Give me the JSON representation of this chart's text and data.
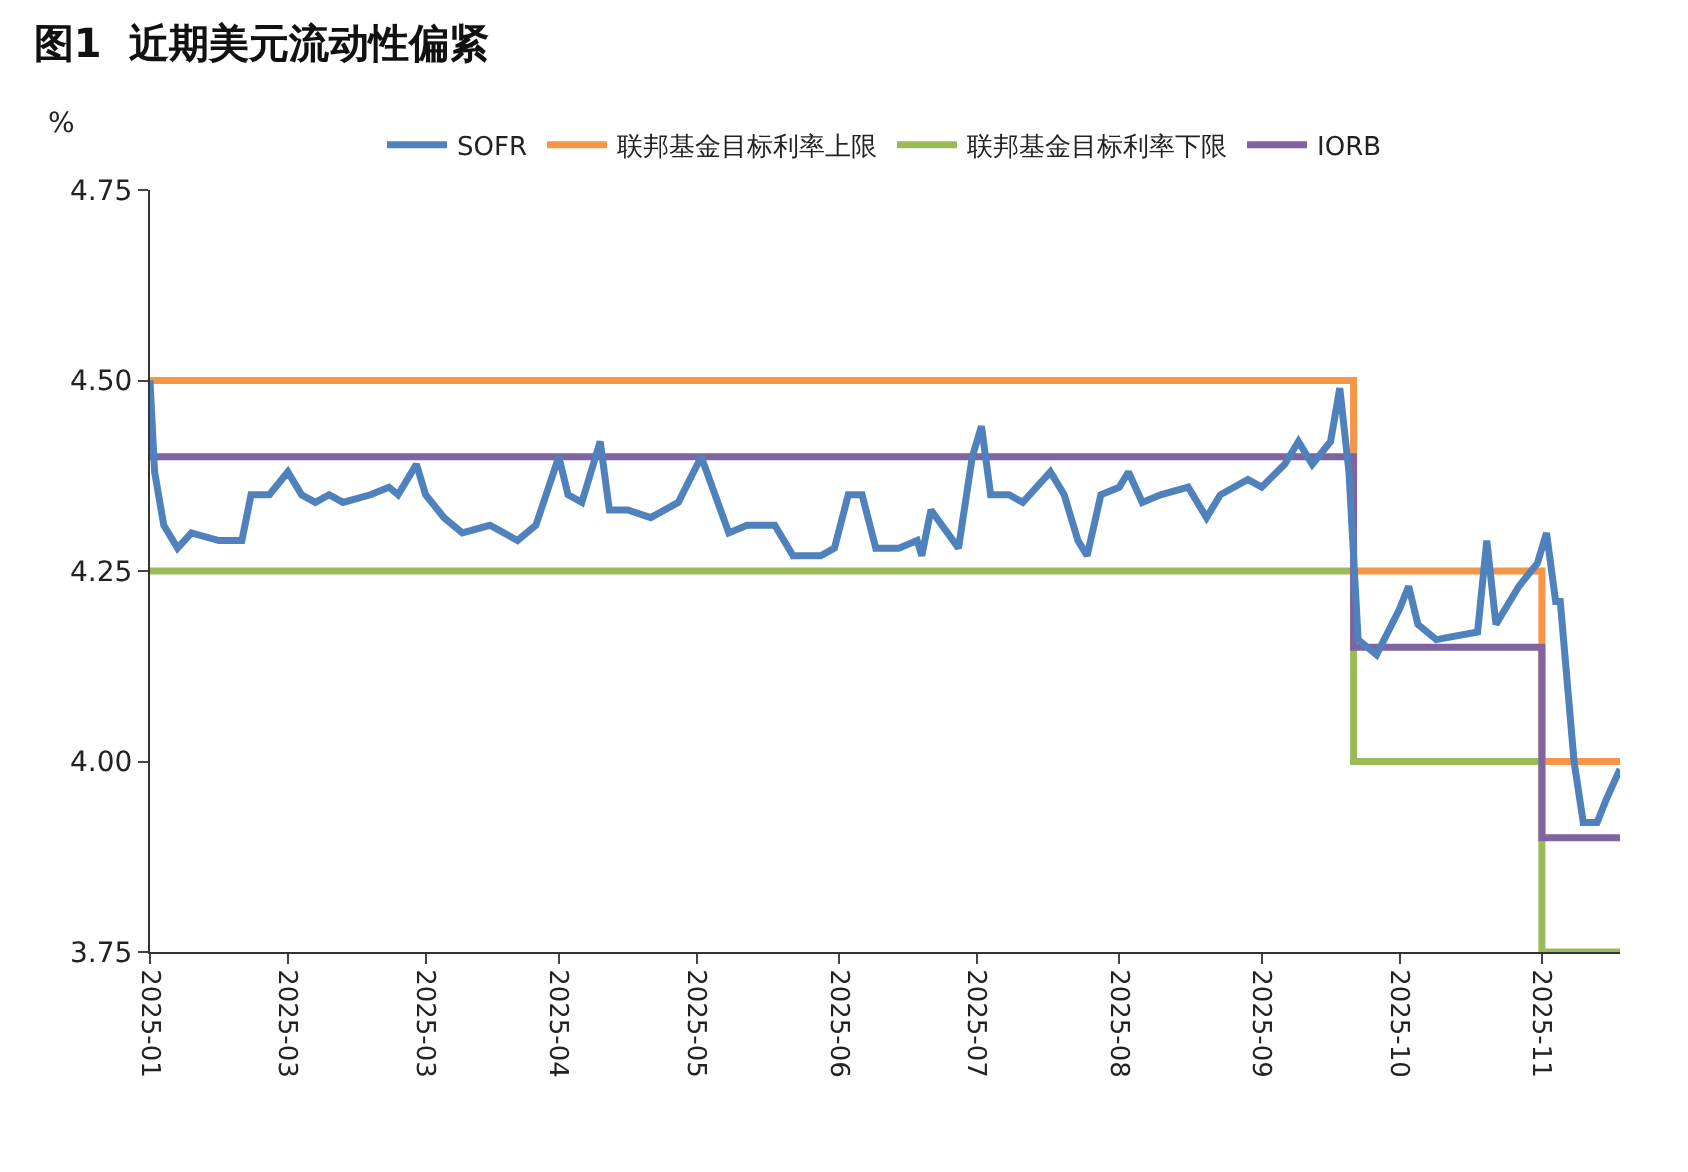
{
  "chart_data": {
    "type": "line",
    "title": "图1  近期美元流动性偏紧",
    "ylabel": "%",
    "legend": "top",
    "xlim": [
      "2025-01-01",
      "2025-11-17"
    ],
    "ylim": [
      3.75,
      4.75
    ],
    "yticks": [
      3.75,
      {
        "value": 4.0,
        "label": "4.00"
      },
      4.25,
      {
        "value": 4.5,
        "label": "4.50"
      },
      4.75
    ],
    "xticks": [
      {
        "value": "2025-01-01",
        "label": "2025-01"
      },
      {
        "value": "2025-01-31",
        "label": "2025-03"
      },
      {
        "value": "2025-03-02",
        "label": "2025-03"
      },
      {
        "value": "2025-03-31",
        "label": "2025-04"
      },
      {
        "value": "2025-04-30",
        "label": "2025-05"
      },
      {
        "value": "2025-05-31",
        "label": "2025-06"
      },
      {
        "value": "2025-06-30",
        "label": "2025-07"
      },
      {
        "value": "2025-07-31",
        "label": "2025-08"
      },
      {
        "value": "2025-08-31",
        "label": "2025-09"
      },
      {
        "value": "2025-09-30",
        "label": "2025-10"
      },
      {
        "value": "2025-10-31",
        "label": "2025-11"
      }
    ],
    "series": [
      {
        "name": "SOFR",
        "color": "#4f81bd",
        "x": [
          "2025-01-01",
          "2025-01-02",
          "2025-01-04",
          "2025-01-07",
          "2025-01-10",
          "2025-01-16",
          "2025-01-21",
          "2025-01-23",
          "2025-01-27",
          "2025-01-31",
          "2025-02-03",
          "2025-02-06",
          "2025-02-09",
          "2025-02-12",
          "2025-02-18",
          "2025-02-22",
          "2025-02-24",
          "2025-02-28",
          "2025-03-02",
          "2025-03-06",
          "2025-03-10",
          "2025-03-16",
          "2025-03-22",
          "2025-03-26",
          "2025-03-31",
          "2025-04-02",
          "2025-04-05",
          "2025-04-09",
          "2025-04-11",
          "2025-04-15",
          "2025-04-20",
          "2025-04-26",
          "2025-05-01",
          "2025-05-04",
          "2025-05-07",
          "2025-05-11",
          "2025-05-17",
          "2025-05-21",
          "2025-05-27",
          "2025-05-30",
          "2025-06-02",
          "2025-06-05",
          "2025-06-08",
          "2025-06-13",
          "2025-06-17",
          "2025-06-18",
          "2025-06-20",
          "2025-06-26",
          "2025-06-29",
          "2025-07-01",
          "2025-07-03",
          "2025-07-07",
          "2025-07-10",
          "2025-07-16",
          "2025-07-19",
          "2025-07-22",
          "2025-07-24",
          "2025-07-27",
          "2025-07-31",
          "2025-08-02",
          "2025-08-05",
          "2025-08-09",
          "2025-08-15",
          "2025-08-19",
          "2025-08-22",
          "2025-08-28",
          "2025-08-31",
          "2025-09-05",
          "2025-09-08",
          "2025-09-11",
          "2025-09-15",
          "2025-09-17",
          "2025-09-19",
          "2025-09-21",
          "2025-09-25",
          "2025-09-30",
          "2025-10-02",
          "2025-10-04",
          "2025-10-08",
          "2025-10-17",
          "2025-10-19",
          "2025-10-21",
          "2025-10-26",
          "2025-10-30",
          "2025-11-01",
          "2025-11-03",
          "2025-11-04",
          "2025-11-07",
          "2025-11-09",
          "2025-11-12",
          "2025-11-14",
          "2025-11-17"
        ],
        "values": [
          4.5,
          4.38,
          4.31,
          4.28,
          4.3,
          4.29,
          4.29,
          4.35,
          4.35,
          4.38,
          4.35,
          4.34,
          4.35,
          4.34,
          4.35,
          4.36,
          4.35,
          4.39,
          4.35,
          4.32,
          4.3,
          4.31,
          4.29,
          4.31,
          4.4,
          4.35,
          4.34,
          4.42,
          4.33,
          4.33,
          4.32,
          4.34,
          4.4,
          4.35,
          4.3,
          4.31,
          4.31,
          4.27,
          4.27,
          4.28,
          4.35,
          4.35,
          4.28,
          4.28,
          4.29,
          4.27,
          4.33,
          4.28,
          4.4,
          4.44,
          4.35,
          4.35,
          4.34,
          4.38,
          4.35,
          4.29,
          4.27,
          4.35,
          4.36,
          4.38,
          4.34,
          4.35,
          4.36,
          4.32,
          4.35,
          4.37,
          4.36,
          4.39,
          4.42,
          4.39,
          4.42,
          4.49,
          4.38,
          4.16,
          4.14,
          4.2,
          4.23,
          4.18,
          4.16,
          4.17,
          4.29,
          4.18,
          4.23,
          4.26,
          4.3,
          4.21,
          4.21,
          4.0,
          3.92,
          3.92,
          3.95,
          3.99
        ]
      },
      {
        "name": "联邦基金目标利率上限",
        "color": "#f79646",
        "type": "step",
        "x": [
          "2025-01-01",
          "2025-09-20",
          "2025-10-31",
          "2025-11-17"
        ],
        "values": [
          4.5,
          4.25,
          4.0,
          4.0
        ]
      },
      {
        "name": "联邦基金目标利率下限",
        "color": "#9bbb59",
        "type": "step",
        "x": [
          "2025-01-01",
          "2025-09-20",
          "2025-10-31",
          "2025-11-17"
        ],
        "values": [
          4.25,
          4.0,
          3.75,
          3.75
        ]
      },
      {
        "name": "IORB",
        "color": "#8064a2",
        "type": "step",
        "x": [
          "2025-01-01",
          "2025-09-20",
          "2025-10-31",
          "2025-11-17"
        ],
        "values": [
          4.4,
          4.15,
          3.9,
          3.9
        ]
      }
    ]
  }
}
